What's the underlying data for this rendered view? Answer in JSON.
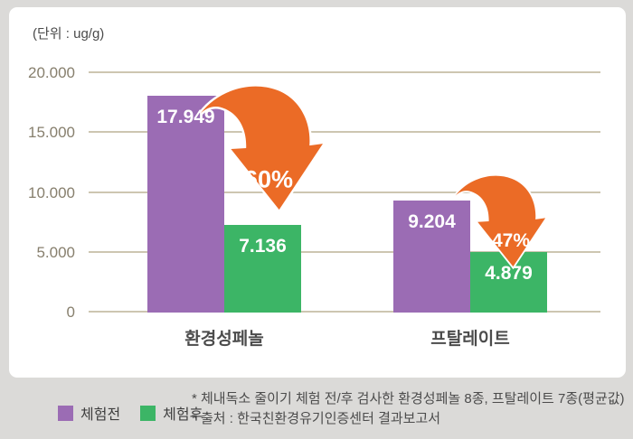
{
  "unit_label": "(단위 : ug/g)",
  "chart_data": {
    "type": "bar",
    "title": "",
    "unit": "(단위 : ug/g)",
    "categories": [
      "환경성페놀",
      "프탈레이트"
    ],
    "series": [
      {
        "name": "체험전",
        "color": "#9b6cb4",
        "values": [
          17949,
          9204
        ],
        "labels": [
          "17.949",
          "9.204"
        ]
      },
      {
        "name": "체험후",
        "color": "#3cb566",
        "values": [
          7136,
          4879
        ],
        "labels": [
          "7.136",
          "4.879"
        ]
      }
    ],
    "annotations": [
      {
        "text": "60%",
        "type": "decrease-arrow",
        "category": "환경성페놀"
      },
      {
        "text": "47%",
        "type": "decrease-arrow",
        "category": "프탈레이트"
      }
    ],
    "yticks": [
      {
        "label": "20.000",
        "value": 20000
      },
      {
        "label": "15.000",
        "value": 15000
      },
      {
        "label": "10.000",
        "value": 10000
      },
      {
        "label": "5.000",
        "value": 5000
      },
      {
        "label": "0",
        "value": 0
      }
    ],
    "ylim": [
      0,
      20000
    ],
    "grid": true,
    "legend_position": "bottom-left"
  },
  "legend": {
    "items": [
      {
        "label": "체험전",
        "color": "#9b6cb4"
      },
      {
        "label": "체험후",
        "color": "#3cb566"
      }
    ]
  },
  "footnotes": [
    "* 체내독소 줄이기 체험 전/후 검사한 환경성페놀 8종, 프탈레이트 7종(평균값)",
    "* 출처 : 한국친환경유기인증센터 결과보고서"
  ],
  "colors": {
    "background": "#dbdad8",
    "card": "#ffffff",
    "gridline": "#cdc6b1",
    "arrow_orange": "#eb6b26",
    "before_purple": "#9b6cb4",
    "after_green": "#3cb566",
    "axis_text": "#877f6d",
    "label_text": "#4c4c4c"
  }
}
